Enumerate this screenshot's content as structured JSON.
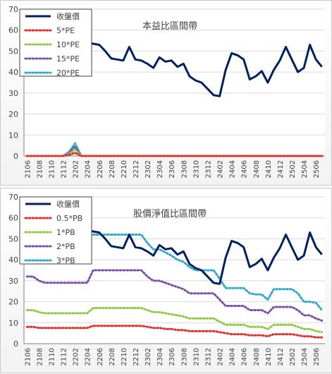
{
  "chart_data": [
    {
      "type": "line",
      "title": "本益比區間帶",
      "ylim": [
        0,
        70
      ],
      "yticks": [
        0,
        10,
        20,
        30,
        40,
        50,
        60,
        70
      ],
      "x": [
        "2106",
        "2107",
        "2108",
        "2109",
        "2110",
        "2111",
        "2112",
        "2201",
        "2202",
        "2203",
        "2204",
        "2205",
        "2206",
        "2207",
        "2208",
        "2209",
        "2210",
        "2211",
        "2212",
        "2301",
        "2302",
        "2303",
        "2304",
        "2305",
        "2306",
        "2307",
        "2308",
        "2309",
        "2310",
        "2311",
        "2312",
        "2401",
        "2402",
        "2403",
        "2404",
        "2405",
        "2406",
        "2407",
        "2408",
        "2409",
        "2410",
        "2411",
        "2412",
        "2501",
        "2502",
        "2503",
        "2504",
        "2505",
        "2506",
        "2507"
      ],
      "xtick_labels": [
        "2106",
        "2108",
        "2110",
        "2112",
        "2202",
        "2204",
        "2206",
        "2208",
        "2210",
        "2212",
        "2302",
        "2304",
        "2306",
        "2308",
        "2310",
        "2312",
        "2402",
        "2404",
        "2406",
        "2408",
        "2410",
        "2412",
        "2502",
        "2504",
        "2506"
      ],
      "legend_position": "top-left",
      "series": [
        {
          "name": "收盤價",
          "color": "#002060",
          "style": "solid",
          "values": [
            null,
            null,
            null,
            null,
            null,
            null,
            null,
            null,
            null,
            51,
            54,
            53.5,
            53,
            50,
            46.5,
            46,
            45.5,
            52,
            46,
            45.5,
            44,
            42,
            47,
            45,
            45.5,
            42.5,
            44,
            38,
            36,
            35,
            32,
            29,
            28.5,
            41,
            49,
            48,
            46,
            36.5,
            38,
            40.5,
            35,
            41,
            45.5,
            52,
            46,
            40,
            42,
            53,
            46,
            42.5
          ]
        },
        {
          "name": "5*PE",
          "color": "#e03030",
          "style": "dotted",
          "values": [
            0,
            0,
            0,
            0,
            0,
            0,
            0,
            0.5,
            1.5,
            0,
            0,
            0,
            0,
            0,
            0,
            0,
            0,
            0,
            0,
            0,
            0,
            0,
            0,
            0,
            0,
            0,
            0,
            0,
            0,
            0,
            0,
            0,
            0,
            0,
            0,
            0,
            0,
            0,
            0,
            0,
            0,
            0,
            0,
            0,
            0,
            0,
            0,
            0,
            0,
            0
          ]
        },
        {
          "name": "10*PE",
          "color": "#92c94a",
          "style": "dotted",
          "values": [
            0,
            0,
            0,
            0,
            0,
            0,
            0,
            1,
            3,
            0,
            0,
            0,
            0,
            0,
            0,
            0,
            0,
            0,
            0,
            0,
            0,
            0,
            0,
            0,
            0,
            0,
            0,
            0,
            0,
            0,
            0,
            0,
            0,
            0,
            0,
            0,
            0,
            0,
            0,
            0,
            0,
            0,
            0,
            0,
            0,
            0,
            0,
            0,
            0,
            0
          ]
        },
        {
          "name": "15*PE",
          "color": "#7a52a8",
          "style": "dotted",
          "values": [
            0,
            0,
            0,
            0,
            0,
            0,
            0,
            1.5,
            4.5,
            0,
            0,
            0,
            0,
            0,
            0,
            0,
            0,
            0,
            0,
            0,
            0,
            0,
            0,
            0,
            0,
            0,
            0,
            0,
            0,
            0,
            0,
            0,
            0,
            0,
            0,
            0,
            0,
            0,
            0,
            0,
            0,
            0,
            0,
            0,
            0,
            0,
            0,
            0,
            0,
            0
          ]
        },
        {
          "name": "20*PE",
          "color": "#31a9c9",
          "style": "dotted",
          "values": [
            0,
            0,
            0,
            0,
            0,
            0,
            0,
            2,
            6,
            0,
            0,
            0,
            0,
            0,
            0,
            0,
            0,
            0,
            0,
            0,
            0,
            0,
            0,
            0,
            0,
            0,
            0,
            0,
            0,
            0,
            0,
            0,
            0,
            0,
            0,
            0,
            0,
            0,
            0,
            0,
            0,
            0,
            0,
            0,
            0,
            0,
            0,
            0,
            0,
            0
          ]
        }
      ]
    },
    {
      "type": "line",
      "title": "股價淨值比區間帶",
      "ylim": [
        0,
        70
      ],
      "yticks": [
        0,
        10,
        20,
        30,
        40,
        50,
        60,
        70
      ],
      "x": [
        "2106",
        "2107",
        "2108",
        "2109",
        "2110",
        "2111",
        "2112",
        "2201",
        "2202",
        "2203",
        "2204",
        "2205",
        "2206",
        "2207",
        "2208",
        "2209",
        "2210",
        "2211",
        "2212",
        "2301",
        "2302",
        "2303",
        "2304",
        "2305",
        "2306",
        "2307",
        "2308",
        "2309",
        "2310",
        "2311",
        "2312",
        "2401",
        "2402",
        "2403",
        "2404",
        "2405",
        "2406",
        "2407",
        "2408",
        "2409",
        "2410",
        "2411",
        "2412",
        "2501",
        "2502",
        "2503",
        "2504",
        "2505",
        "2506",
        "2507"
      ],
      "xtick_labels": [
        "2106",
        "2108",
        "2110",
        "2112",
        "2202",
        "2204",
        "2206",
        "2208",
        "2210",
        "2212",
        "2302",
        "2304",
        "2306",
        "2308",
        "2310",
        "2312",
        "2402",
        "2404",
        "2406",
        "2408",
        "2410",
        "2412",
        "2502",
        "2504",
        "2506"
      ],
      "legend_position": "top-left",
      "series": [
        {
          "name": "收盤價",
          "color": "#002060",
          "style": "solid",
          "values": [
            null,
            null,
            null,
            null,
            null,
            null,
            null,
            null,
            null,
            51,
            54,
            53.5,
            53,
            50,
            46.5,
            46,
            45.5,
            52,
            46,
            45.5,
            44,
            42,
            47,
            45,
            45.5,
            42.5,
            44,
            38,
            36,
            35,
            32,
            29,
            28.5,
            41,
            49,
            48,
            46,
            36.5,
            38,
            40.5,
            35,
            41,
            45.5,
            52,
            46,
            40,
            42,
            53,
            46,
            42.5
          ]
        },
        {
          "name": "0.5*PB",
          "color": "#e03030",
          "style": "dotted",
          "values": [
            8,
            8,
            7.5,
            7.5,
            7.5,
            7.5,
            7.5,
            7.5,
            7.5,
            7.5,
            7.5,
            8.5,
            8.5,
            8.5,
            8.5,
            8.5,
            8.5,
            8.5,
            8.5,
            8.5,
            8,
            7.5,
            7.5,
            7,
            7,
            6.5,
            6.5,
            6,
            6,
            6,
            6,
            6,
            5.5,
            5,
            4.5,
            4.5,
            4.5,
            4,
            4,
            4,
            3.5,
            4.5,
            4.5,
            4.5,
            4.5,
            4,
            3.5,
            3.5,
            3,
            3
          ]
        },
        {
          "name": "1*PB",
          "color": "#92c94a",
          "style": "dotted",
          "values": [
            16,
            16,
            15,
            14.5,
            14.5,
            14.5,
            14.5,
            14.5,
            14.5,
            14.5,
            14.5,
            17,
            17,
            17,
            17,
            17,
            17,
            17,
            17,
            17,
            16,
            15,
            15,
            14.5,
            14,
            13.5,
            13,
            12,
            12,
            12,
            12,
            12,
            10.5,
            9,
            9,
            9,
            9,
            8,
            8,
            8,
            7,
            9,
            9,
            9,
            9,
            8,
            7,
            7,
            6,
            5.5
          ]
        },
        {
          "name": "2*PB",
          "color": "#7a52a8",
          "style": "dotted",
          "values": [
            32,
            32,
            30,
            29,
            29,
            29,
            29,
            29,
            29,
            29,
            29,
            35,
            35,
            35,
            35,
            35,
            35,
            35,
            35,
            35,
            32,
            30,
            30,
            29,
            28,
            27,
            26,
            24,
            24,
            24,
            24,
            24,
            21,
            18,
            18,
            18,
            18,
            16,
            16,
            16,
            14.5,
            17.5,
            17.5,
            17.5,
            17.5,
            16,
            13.5,
            13.5,
            12,
            11
          ]
        },
        {
          "name": "3*PB",
          "color": "#31a9c9",
          "style": "dotted",
          "values": [
            null,
            null,
            null,
            null,
            null,
            null,
            null,
            null,
            null,
            null,
            null,
            52,
            52,
            52,
            52,
            52,
            52,
            52,
            52,
            52,
            48,
            45,
            45,
            43.5,
            42,
            40,
            39,
            36.5,
            35,
            35,
            35,
            35,
            31,
            26.5,
            26.5,
            26.5,
            26.5,
            24,
            23.5,
            23.5,
            21,
            26,
            26,
            26,
            26,
            24,
            20,
            20,
            19.5,
            16
          ]
        }
      ]
    }
  ]
}
